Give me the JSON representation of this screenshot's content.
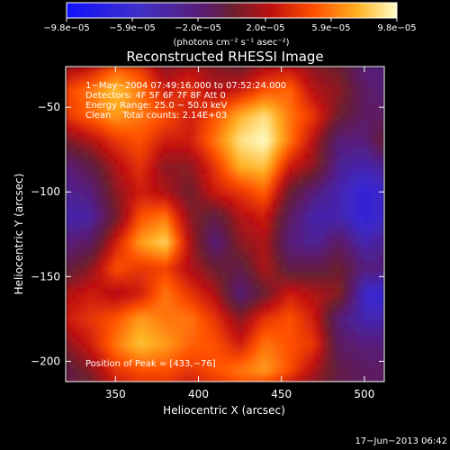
{
  "chart_data": {
    "type": "heatmap",
    "title": "Reconstructed RHESSI Image",
    "xlabel": "Heliocentric X (arcsec)",
    "ylabel": "Heliocentric Y (arcsec)",
    "xlim": [
      320,
      512
    ],
    "ylim": [
      -212,
      -26
    ],
    "x_ticks": [
      350,
      400,
      450,
      500
    ],
    "y_ticks": [
      -50,
      -100,
      -150,
      -200
    ],
    "x_tick_labels": [
      "350",
      "400",
      "450",
      "500"
    ],
    "y_tick_labels": [
      "−50",
      "−100",
      "−150",
      "−200"
    ],
    "colorbar": {
      "min": -9.8e-05,
      "max": 9.8e-05,
      "tick_labels": [
        "−9.8e−05",
        "−5.9e−05",
        "−2.0e−05",
        "2.0e−05",
        "5.9e−05",
        "9.8e−05"
      ],
      "tick_values": [
        -9.8e-05,
        -5.9e-05,
        -2e-05,
        2e-05,
        5.9e-05,
        9.8e-05
      ],
      "units_label": "(photons cm⁻² s⁻¹ asec⁻²)"
    },
    "annotations": [
      "1−May−2004 07:49:16.000 to 07:52:24.000",
      "Detectors: 4F 5F 6F 7F 8F Att 0",
      "Energy Range: 25.0 − 50.0 keV",
      "Clean    Total counts: 2.14E+03"
    ],
    "peak_label": "Position of Peak = [433,−76]",
    "peak": [
      433,
      -76
    ],
    "grid": false,
    "approx_intensity_grid": {
      "x": [
        320,
        335,
        350,
        365,
        380,
        395,
        410,
        425,
        440,
        455,
        470,
        485,
        500,
        512
      ],
      "y": [
        -26,
        -40,
        -55,
        -70,
        -85,
        -100,
        -115,
        -130,
        -145,
        -160,
        -175,
        -190,
        -205,
        -212
      ],
      "z": [
        [
          0.15,
          0.25,
          0.5,
          0.4,
          0.1,
          0.2,
          0.1,
          0.0,
          0.2,
          0.25,
          0.1,
          0.0,
          -0.3,
          -0.3
        ],
        [
          0.45,
          0.6,
          0.8,
          0.6,
          0.3,
          0.4,
          0.2,
          0.3,
          0.5,
          0.55,
          0.2,
          0.1,
          -0.2,
          -0.3
        ],
        [
          0.4,
          0.55,
          0.7,
          0.6,
          0.5,
          0.3,
          0.5,
          0.75,
          0.9,
          0.6,
          0.4,
          0.0,
          -0.2,
          -0.2
        ],
        [
          0.05,
          0.2,
          0.4,
          0.5,
          0.3,
          0.3,
          0.6,
          0.9,
          1.0,
          0.6,
          0.2,
          -0.3,
          -0.3,
          0.0
        ],
        [
          -0.3,
          -0.1,
          0.2,
          0.4,
          0.1,
          0.1,
          0.4,
          0.75,
          0.8,
          0.3,
          0.1,
          -0.4,
          -0.5,
          -0.4
        ],
        [
          -0.4,
          -0.3,
          0.1,
          0.3,
          0.2,
          0.0,
          0.3,
          0.4,
          0.55,
          0.0,
          -0.3,
          -0.5,
          -0.7,
          -0.6
        ],
        [
          -0.5,
          -0.45,
          0.0,
          0.5,
          0.6,
          0.1,
          -0.1,
          0.2,
          0.3,
          -0.2,
          -0.5,
          -0.5,
          -0.7,
          -0.6
        ],
        [
          -0.3,
          -0.2,
          0.3,
          0.7,
          0.85,
          0.2,
          -0.3,
          0.1,
          0.2,
          -0.3,
          -0.4,
          -0.2,
          -0.5,
          -0.4
        ],
        [
          -0.1,
          0.1,
          0.5,
          0.4,
          0.45,
          0.2,
          0.0,
          -0.1,
          0.2,
          -0.1,
          -0.1,
          0.0,
          -0.3,
          -0.3
        ],
        [
          0.2,
          0.3,
          0.2,
          0.3,
          0.6,
          0.4,
          0.2,
          -0.3,
          0.0,
          0.3,
          0.2,
          0.1,
          -0.6,
          -0.7
        ],
        [
          0.3,
          0.4,
          0.5,
          0.7,
          0.6,
          0.6,
          0.4,
          0.1,
          0.4,
          0.5,
          0.3,
          -0.3,
          -0.5,
          -0.5
        ],
        [
          0.1,
          0.3,
          0.6,
          0.8,
          0.7,
          0.55,
          0.5,
          0.3,
          0.6,
          0.5,
          0.4,
          -0.2,
          -0.3,
          -0.3
        ],
        [
          -0.1,
          0.1,
          0.4,
          0.5,
          0.5,
          0.4,
          0.5,
          0.6,
          0.7,
          0.5,
          0.2,
          -0.1,
          -0.2,
          -0.2
        ],
        [
          -0.1,
          0.0,
          0.3,
          0.4,
          0.4,
          0.3,
          0.4,
          0.5,
          0.5,
          0.3,
          0.1,
          -0.1,
          -0.2,
          -0.2
        ]
      ]
    }
  },
  "footer": {
    "datestamp": "17−Jun−2013 06:42"
  }
}
